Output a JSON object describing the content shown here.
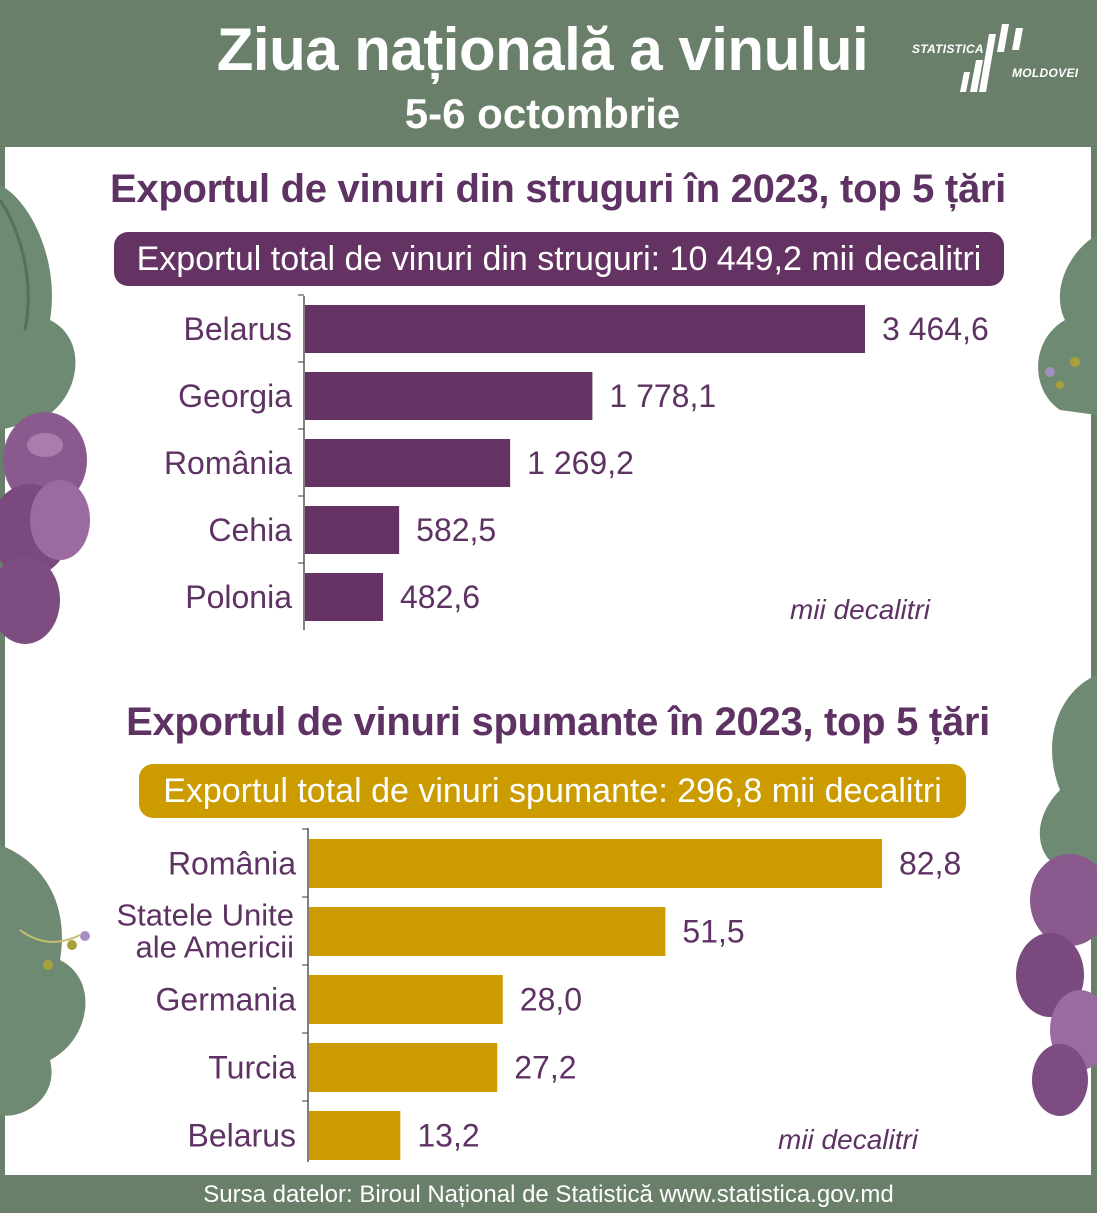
{
  "header": {
    "title": "Ziua națională a vinului",
    "subtitle": "5-6 octombrie",
    "logo_line1": "STATISTICA",
    "logo_line2": "MOLDOVEI"
  },
  "colors": {
    "background": "#6a7f69",
    "purple": "#643263",
    "gold": "#cc9b00",
    "text_purple": "#5f3264"
  },
  "chart_data": [
    {
      "type": "bar",
      "orientation": "horizontal",
      "title": "Exportul de vinuri din struguri în 2023, top 5 țări",
      "total_label": "Exportul total de vinuri din struguri: 10 449,2 mii decalitri",
      "unit": "mii decalitri",
      "categories": [
        "Belarus",
        "Georgia",
        "România",
        "Cehia",
        "Polonia"
      ],
      "values": [
        3464.6,
        1778.1,
        1269.2,
        582.5,
        482.6
      ],
      "value_labels": [
        "3 464,6",
        "1 778,1",
        "1 269,2",
        "582,5",
        "482,6"
      ],
      "color": "#643263"
    },
    {
      "type": "bar",
      "orientation": "horizontal",
      "title": "Exportul de vinuri spumante în 2023, top 5 țări",
      "total_label": "Exportul total de vinuri spumante: 296,8 mii decalitri",
      "unit": "mii decalitri",
      "categories": [
        "România",
        "Statele Unite ale Americii",
        "Germania",
        "Turcia",
        "Belarus"
      ],
      "values": [
        82.8,
        51.5,
        28.0,
        27.2,
        13.2
      ],
      "value_labels": [
        "82,8",
        "51,5",
        "28,0",
        "27,2",
        "13,2"
      ],
      "color": "#cc9b00"
    }
  ],
  "footer": {
    "source": "Sursa datelor: Biroul Național de Statistică www.statistica.gov.md"
  }
}
